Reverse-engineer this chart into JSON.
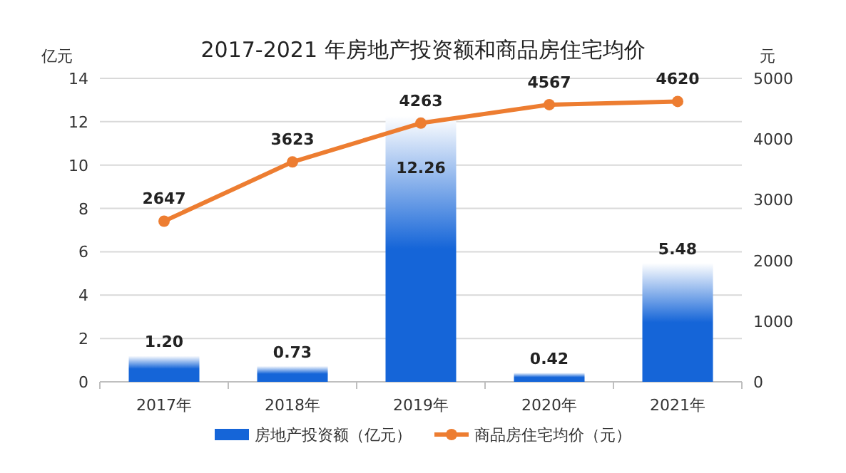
{
  "chart_data": {
    "type": "bar",
    "title": "2017-2021 年房地产投资额和商品房住宅均价",
    "ylabel": "亿元",
    "y2label": "元",
    "categories": [
      "2017年",
      "2018年",
      "2019年",
      "2020年",
      "2021年"
    ],
    "series": [
      {
        "name": "房地产投资额（亿元）",
        "color": "#1565d8",
        "values": [
          1.2,
          0.73,
          12.26,
          0.42,
          5.48
        ],
        "value_labels": [
          "1.20",
          "0.73",
          "12.26",
          "0.42",
          "5.48"
        ]
      },
      {
        "name": "商品房住宅均价（元）",
        "type": "line",
        "axis": "y2",
        "color": "#ed7d31",
        "marker": "circle",
        "values": [
          2647,
          3623,
          4263,
          4567,
          4620
        ],
        "value_labels": [
          "2647",
          "3623",
          "4263",
          "4567",
          "4620"
        ]
      }
    ],
    "ylim": [
      0,
      14
    ],
    "yticks": [
      0,
      2,
      4,
      6,
      8,
      10,
      12,
      14
    ],
    "y2lim": [
      0,
      5000
    ],
    "y2ticks": [
      0,
      1000,
      2000,
      3000,
      4000,
      5000
    ],
    "grid": "y",
    "legend": "bottom"
  }
}
